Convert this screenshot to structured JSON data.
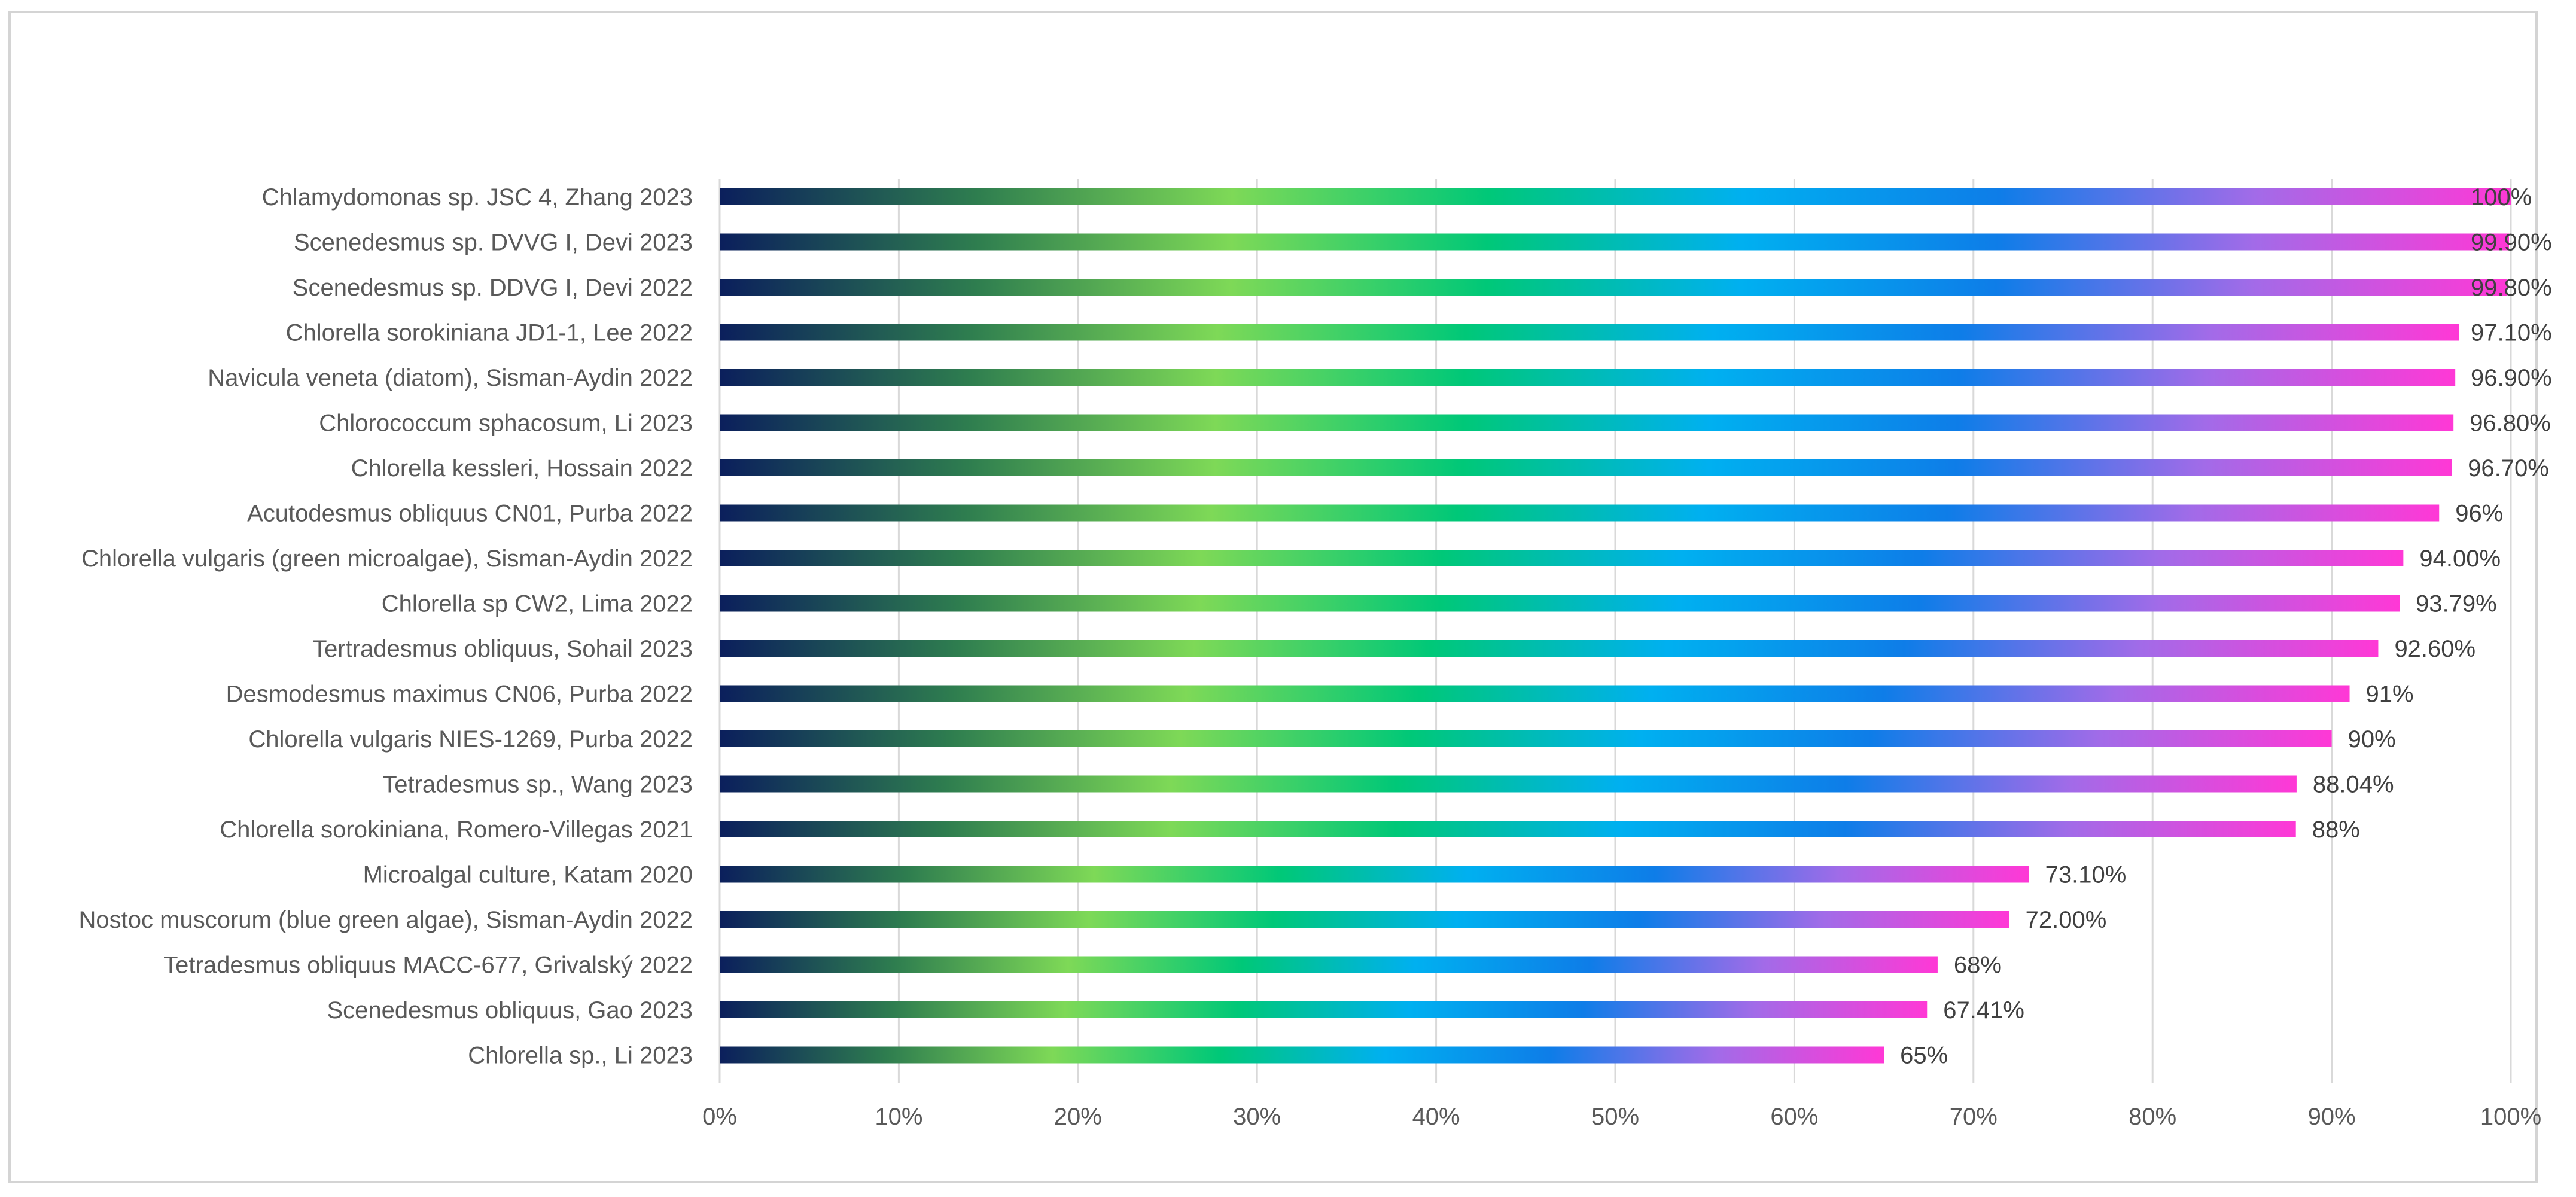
{
  "chart_data": {
    "type": "bar",
    "orientation": "horizontal",
    "title": "",
    "xlabel": "",
    "ylabel": "",
    "xlim": [
      0,
      1
    ],
    "grid": true,
    "legend": "none",
    "x_ticks": [
      "0%",
      "10%",
      "20%",
      "30%",
      "40%",
      "50%",
      "60%",
      "70%",
      "80%",
      "90%",
      "100%"
    ],
    "categories": [
      "Chlamydomonas sp. JSC 4, Zhang 2023",
      "Scenedesmus sp. DVVG I, Devi 2023",
      "Scenedesmus sp. DDVG I, Devi 2022",
      "Chlorella sorokiniana JD1-1, Lee 2022",
      "Navicula veneta (diatom), Sisman-Aydin 2022",
      "Chlorococcum sphacosum, Li 2023",
      "Chlorella kessleri, Hossain 2022",
      "Acutodesmus obliquus CN01, Purba 2022",
      "Chlorella vulgaris (green microalgae), Sisman-Aydin 2022",
      "Chlorella sp CW2, Lima 2022",
      "Tertradesmus obliquus, Sohail 2023",
      "Desmodesmus maximus CN06, Purba 2022",
      "Chlorella vulgaris NIES-1269, Purba 2022",
      "Tetradesmus sp., Wang 2023",
      "Chlorella sorokiniana, Romero-Villegas 2021",
      "Microalgal culture, Katam 2020",
      "Nostoc muscorum (blue green algae), Sisman-Aydin 2022",
      "Tetradesmus obliquus MACC-677, Grivalský 2022",
      "Scenedesmus obliquus, Gao 2023",
      "Chlorella sp., Li 2023"
    ],
    "values": [
      1.0,
      0.999,
      0.998,
      0.971,
      0.969,
      0.968,
      0.967,
      0.96,
      0.94,
      0.9379,
      0.926,
      0.91,
      0.9,
      0.8804,
      0.88,
      0.731,
      0.72,
      0.68,
      0.6741,
      0.65
    ],
    "data_labels": [
      "100%",
      "99.90%",
      "99.80%",
      "97.10%",
      "96.90%",
      "96.80%",
      "96.70%",
      "96%",
      "94.00%",
      "93.79%",
      "92.60%",
      "91%",
      "90%",
      "88.04%",
      "88%",
      "73.10%",
      "72.00%",
      "68%",
      "67.41%",
      "65%"
    ],
    "colors": {
      "gradient": [
        "#0b1f5c",
        "#2e7d4f",
        "#7ed957",
        "#00c878",
        "#00b0f0",
        "#0e7de8",
        "#a26be8",
        "#ff38d6"
      ],
      "grid": "#d9d9d9",
      "text": "#595959"
    }
  }
}
